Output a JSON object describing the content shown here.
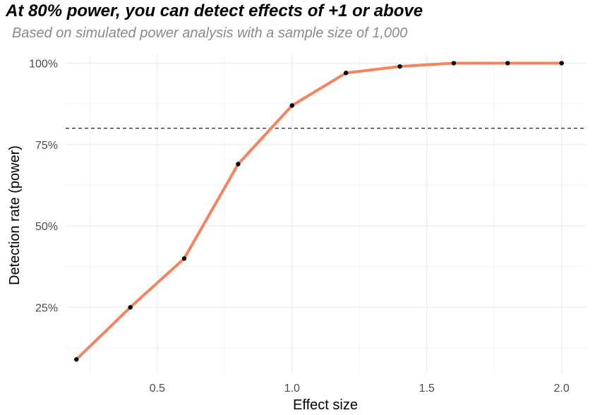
{
  "chart_data": {
    "type": "line",
    "title": "At 80% power, you can detect effects of +1 or above",
    "subtitle": "Based on simulated power analysis with a sample size of 1,000",
    "xlabel": "Effect size",
    "ylabel": "Detection rate (power)",
    "x": [
      0.2,
      0.4,
      0.6,
      0.8,
      1.0,
      1.2,
      1.4,
      1.6,
      1.8,
      2.0
    ],
    "series": [
      {
        "values": [
          0.09,
          0.25,
          0.4,
          0.69,
          0.87,
          0.97,
          0.99,
          1.0,
          1.0,
          1.0
        ]
      }
    ],
    "xlim": [
      0.16,
      2.09
    ],
    "ylim": [
      0.045,
      1.025
    ],
    "x_ticks": [
      0.5,
      1.0,
      1.5,
      2.0
    ],
    "x_tick_labels": [
      "0.5",
      "1.0",
      "1.5",
      "2.0"
    ],
    "y_ticks": [
      0.25,
      0.5,
      0.75,
      1.0
    ],
    "y_tick_labels": [
      "25%",
      "50%",
      "75%",
      "100%"
    ],
    "reference_line": {
      "y": 0.8,
      "style": "dashed"
    },
    "grid": true,
    "line_color": "#f4845f",
    "point_color": "#000000"
  }
}
